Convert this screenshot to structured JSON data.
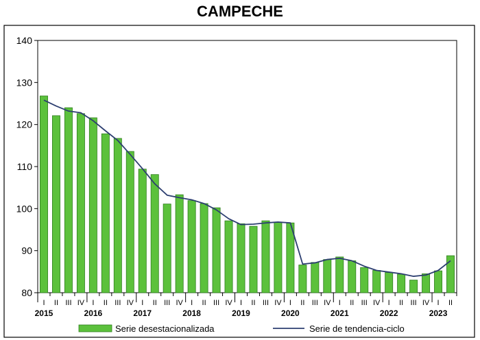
{
  "chart_data": {
    "type": "bar",
    "title": "CAMPECHE",
    "xlabel": "",
    "ylabel": "",
    "ylim": [
      80,
      140
    ],
    "yticks": [
      80,
      90,
      100,
      110,
      120,
      130,
      140
    ],
    "grid": false,
    "legend_position": "bottom",
    "colors": {
      "bar_fill": "#5cc13c",
      "bar_stroke": "#2e7d1e",
      "line": "#2c3e70"
    },
    "categories": [
      "I",
      "II",
      "III",
      "IV",
      "I",
      "II",
      "III",
      "IV",
      "I",
      "II",
      "III",
      "IV",
      "I",
      "II",
      "III",
      "IV",
      "I",
      "II",
      "III",
      "IV",
      "I",
      "II",
      "III",
      "IV",
      "I",
      "II",
      "III",
      "IV",
      "I",
      "II",
      "III",
      "IV",
      "I",
      "II"
    ],
    "years": [
      {
        "label": "2015",
        "quarter_index": 0
      },
      {
        "label": "2016",
        "quarter_index": 4
      },
      {
        "label": "2017",
        "quarter_index": 8
      },
      {
        "label": "2018",
        "quarter_index": 12
      },
      {
        "label": "2019",
        "quarter_index": 16
      },
      {
        "label": "2020",
        "quarter_index": 20
      },
      {
        "label": "2021",
        "quarter_index": 24
      },
      {
        "label": "2022",
        "quarter_index": 28
      },
      {
        "label": "2023",
        "quarter_index": 32
      }
    ],
    "series": [
      {
        "name": "Serie desestacionalizada",
        "type": "bar",
        "values": [
          126.8,
          122.1,
          124.0,
          122.6,
          121.6,
          117.8,
          116.7,
          113.6,
          109.4,
          108.1,
          101.1,
          103.3,
          101.9,
          101.2,
          100.2,
          97.1,
          96.4,
          95.8,
          97.1,
          96.8,
          96.6,
          86.6,
          87.2,
          87.9,
          88.5,
          87.6,
          86.0,
          85.3,
          84.8,
          84.4,
          83.0,
          84.5,
          85.2,
          88.8
        ]
      },
      {
        "name": "Serie de tendencia-ciclo",
        "type": "line",
        "values": [
          125.8,
          124.4,
          123.2,
          122.8,
          120.9,
          118.5,
          116.2,
          112.9,
          109.5,
          105.9,
          103.2,
          102.6,
          102.1,
          101.2,
          99.7,
          97.6,
          96.2,
          96.3,
          96.6,
          96.8,
          96.6,
          86.8,
          87.1,
          87.9,
          88.2,
          87.6,
          86.3,
          85.3,
          84.9,
          84.5,
          83.9,
          84.2,
          85.3,
          87.6
        ]
      }
    ]
  }
}
